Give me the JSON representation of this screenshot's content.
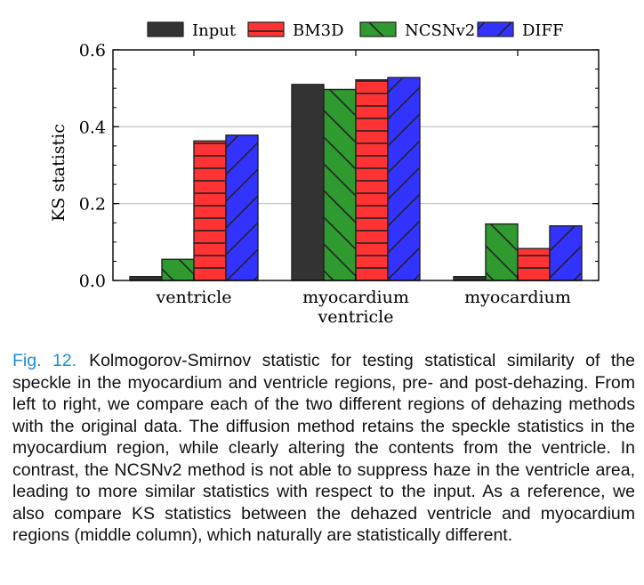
{
  "chart_data": {
    "type": "bar",
    "categories": [
      "ventricle",
      "myocardium\nventricle",
      "myocardium"
    ],
    "series": [
      {
        "name": "Input",
        "values": [
          0.01,
          0.51,
          0.01
        ],
        "color": "#333333",
        "hatch": "none"
      },
      {
        "name": "NCSNv2",
        "values": [
          0.055,
          0.497,
          0.147
        ],
        "color": "#2f9a2f",
        "hatch": "backslash"
      },
      {
        "name": "BM3D",
        "values": [
          0.363,
          0.522,
          0.083
        ],
        "color": "#ff3333",
        "hatch": "horizontal"
      },
      {
        "name": "DIFF",
        "values": [
          0.378,
          0.528,
          0.142
        ],
        "color": "#3333ff",
        "hatch": "slash"
      }
    ],
    "legend_order": [
      "Input",
      "BM3D",
      "NCSNv2",
      "DIFF"
    ],
    "legend_placement": "top",
    "xlabel": "",
    "ylabel": "KS statistic",
    "ylim": [
      0,
      0.6
    ],
    "yticks": [
      "0.0",
      "0.2",
      "0.4",
      "0.6"
    ],
    "grid": "horizontal"
  },
  "caption": {
    "label": "Fig. 12.",
    "text": "Kolmogorov-Smirnov statistic for testing statistical similarity of the speckle in the myocardium and ventricle regions, pre- and post-dehazing. From left to right, we compare each of the two different regions of dehazing methods with the original data. The diffusion method retains the speckle statistics in the myocardium region, while clearly altering the contents from the ventricle. In contrast, the NCSNv2 method is not able to suppress haze in the ventricle area, leading to more similar statistics with respect to the input. As a reference, we also compare KS statistics between the dehazed ventricle and myocardium regions (middle column), which naturally are statistically different."
  }
}
